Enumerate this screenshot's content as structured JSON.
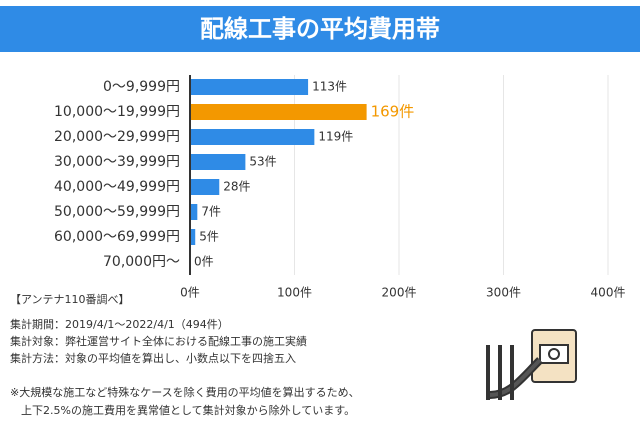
{
  "chart_data": {
    "type": "hbar",
    "title": "配線工事の平均費用帯",
    "categories": [
      "0〜9,999円",
      "10,000〜19,999円",
      "20,000〜29,999円",
      "30,000〜39,999円",
      "40,000〜49,999円",
      "50,000〜59,999円",
      "60,000〜69,999円",
      "70,000円〜"
    ],
    "values": [
      113,
      169,
      119,
      53,
      28,
      7,
      5,
      0
    ],
    "value_labels": [
      "113件",
      "169件",
      "119件",
      "53件",
      "28件",
      "7件",
      "5件",
      "0件"
    ],
    "colors": [
      "#2f8be6",
      "#f39800",
      "#2f8be6",
      "#2f8be6",
      "#2f8be6",
      "#2f8be6",
      "#2f8be6",
      "#2f8be6"
    ],
    "label_colors": [
      "#333333",
      "#f39800",
      "#333333",
      "#333333",
      "#333333",
      "#333333",
      "#333333",
      "#333333"
    ],
    "xlim": [
      0,
      400
    ],
    "xticks": [
      {
        "value": 0,
        "label": "0件"
      },
      {
        "value": 100,
        "label": "100件"
      },
      {
        "value": 200,
        "label": "200件"
      },
      {
        "value": 300,
        "label": "300件"
      },
      {
        "value": 400,
        "label": "400件"
      }
    ],
    "grid": true,
    "notes": [
      "【アンテナ110番調べ】",
      "集計期間：2019/4/1〜2022/4/1（494件）",
      "集計対象：弊社運営サイト全体における配線工事の施工実績",
      "集計方法：対象の平均値を算出し、小数点以下を四捨五入",
      "※大規模な施工など特殊なケースを除く費用の平均値を算出するため、",
      "　上下2.5%の施工費用を異常値として集計対象から除外しています。"
    ]
  }
}
